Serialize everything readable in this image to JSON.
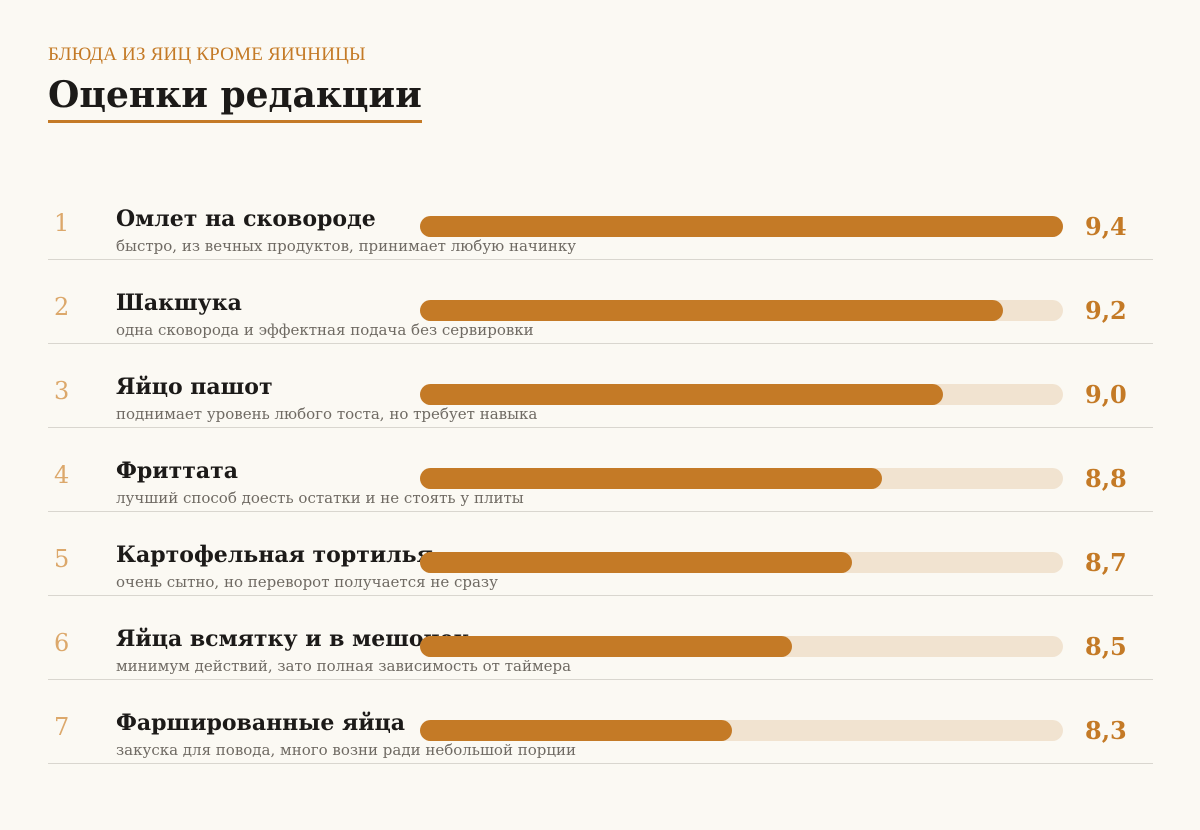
{
  "header": {
    "kicker": "БЛЮДА ИЗ ЯИЦ КРОМЕ ЯИЧНИЦЫ",
    "title": "Оценки редакции"
  },
  "colors": {
    "accent": "#c47a26",
    "track": "#f1e3d0",
    "rank": "#dca86b",
    "background": "#fbf9f3"
  },
  "chart_data": {
    "type": "bar",
    "orientation": "horizontal",
    "title": "Оценки редакции",
    "xlim": [
      0,
      9.4
    ],
    "rows": [
      {
        "rank": "1",
        "name": "Омлет на сковороде",
        "desc": "быстро, из вечных продуктов, принимает любую начинку",
        "value": 9.4,
        "score": "9,4"
      },
      {
        "rank": "2",
        "name": "Шакшука",
        "desc": "одна сковорода и эффектная подача без сервировки",
        "value": 9.2,
        "score": "9,2"
      },
      {
        "rank": "3",
        "name": "Яйцо пашот",
        "desc": "поднимает уровень любого тоста, но требует навыка",
        "value": 9.0,
        "score": "9,0"
      },
      {
        "rank": "4",
        "name": "Фриттата",
        "desc": "лучший способ доесть остатки и не стоять у плиты",
        "value": 8.8,
        "score": "8,8"
      },
      {
        "rank": "5",
        "name": "Картофельная тортилья",
        "desc": "очень сытно, но переворот получается не сразу",
        "value": 8.7,
        "score": "8,7"
      },
      {
        "rank": "6",
        "name": "Яйца всмятку и в мешочек",
        "desc": "минимум действий, зато полная зависимость от таймера",
        "value": 8.5,
        "score": "8,5"
      },
      {
        "rank": "7",
        "name": "Фаршированные яйца",
        "desc": "закуска для повода, много возни ради небольшой порции",
        "value": 8.3,
        "score": "8,3"
      }
    ]
  }
}
